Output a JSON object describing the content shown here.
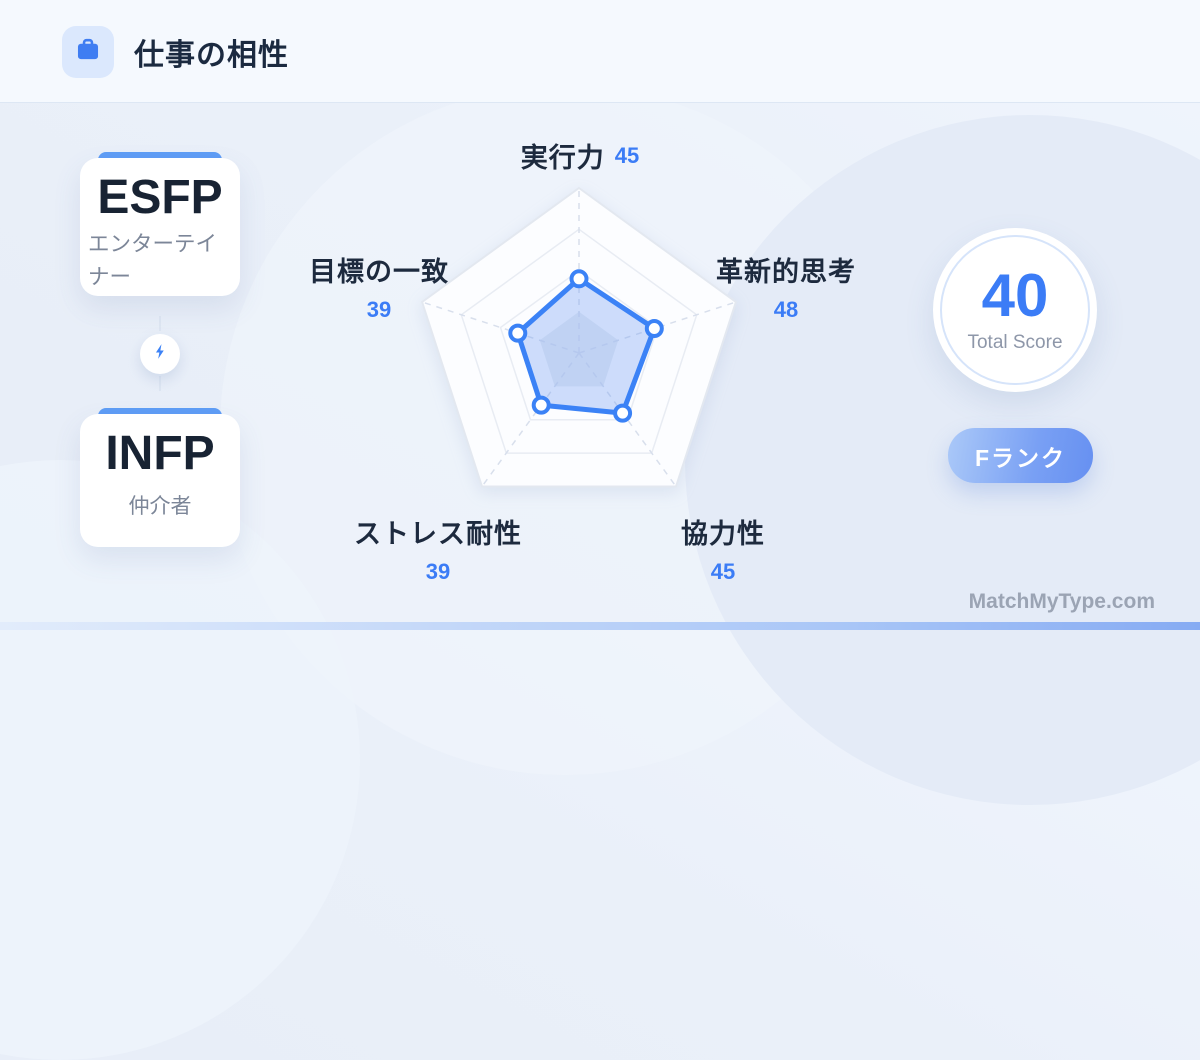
{
  "header": {
    "title": "仕事の相性"
  },
  "pair": {
    "cards": [
      {
        "type": "ESFP",
        "nickname": "エンターテイナー"
      },
      {
        "type": "INFP",
        "nickname": "仲介者"
      }
    ]
  },
  "chart_data": {
    "type": "radar",
    "axes": [
      "実行力",
      "革新的思考",
      "協力性",
      "ストレス耐性",
      "目標の一致"
    ],
    "values": [
      45,
      48,
      45,
      39,
      39
    ],
    "scale_max": 100,
    "grid_levels": 4,
    "grid_shape": "pentagon",
    "legend": "none",
    "stroke_color": "#3b82f6",
    "fill_color": "#6e9bf2",
    "fill_opacity": 0.33
  },
  "score": {
    "value": "40",
    "label": "Total Score"
  },
  "rank": {
    "label": "Fランク"
  },
  "footer": {
    "brand": "MatchMyType.com"
  },
  "colors": {
    "accent": "#3b82f6",
    "value_text": "#3b7cf6",
    "card_topbar": "#5f9df6",
    "rank_gradient_start": "#abc9f8",
    "rank_gradient_end": "#6690f1"
  }
}
